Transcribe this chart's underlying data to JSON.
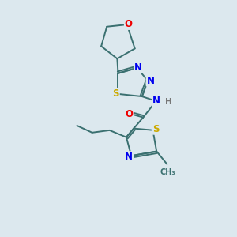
{
  "background_color": "#dce8ee",
  "bond_color": "#3a7070",
  "atom_colors": {
    "N": "#0000ee",
    "O": "#ee0000",
    "S": "#ccaa00",
    "C": "#3a7070",
    "H": "#777777"
  },
  "font_size_atoms": 8.5,
  "figsize": [
    3.0,
    3.0
  ],
  "dpi": 100
}
